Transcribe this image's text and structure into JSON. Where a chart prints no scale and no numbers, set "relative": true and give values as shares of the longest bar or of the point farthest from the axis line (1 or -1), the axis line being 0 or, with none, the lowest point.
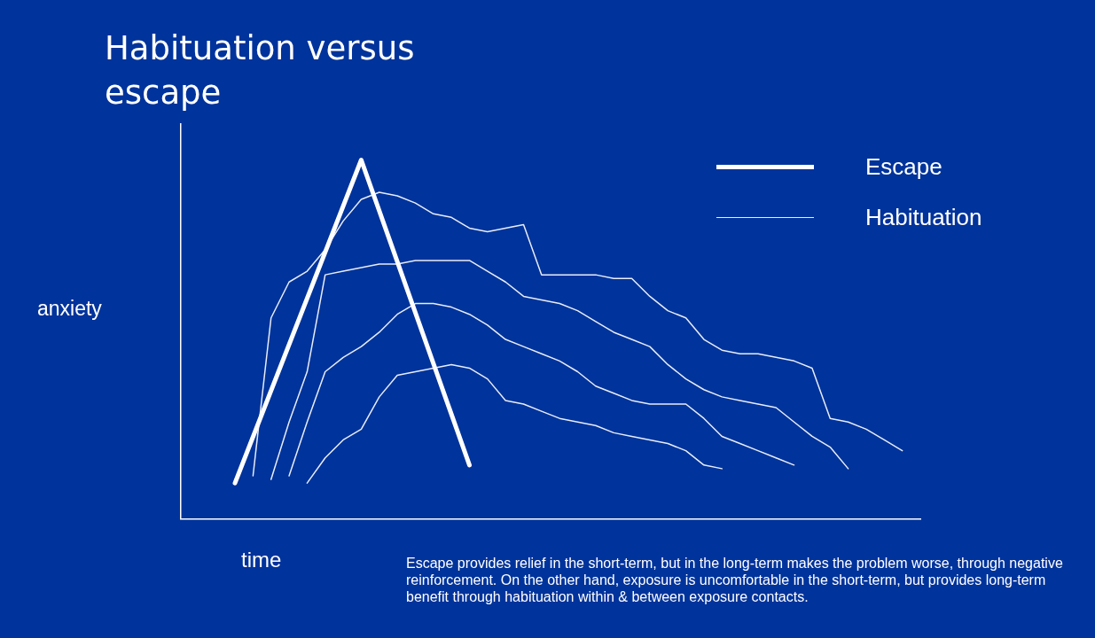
{
  "chart_data": {
    "type": "line",
    "title": "Habituation versus escape",
    "xlabel": "time",
    "ylabel": "anxiety",
    "relative": true,
    "legend": "top right",
    "grid": false,
    "marker": "none",
    "line_style": "solid",
    "categories": [
      null,
      null,
      null,
      null,
      null,
      null,
      null,
      null,
      null,
      null,
      null,
      null,
      null,
      null,
      null,
      null,
      null,
      null,
      null,
      null,
      null,
      null,
      null,
      null,
      null,
      null,
      null,
      null,
      null,
      null,
      null,
      null,
      null,
      null,
      null,
      null,
      null,
      null,
      null,
      null,
      null,
      null
    ],
    "series": [
      {
        "name": "Escape",
        "color": "#ffffff",
        "values": [
          null,
          null,
          null,
          0.1,
          null,
          null,
          null,
          null,
          null,
          null,
          1.0,
          null,
          null,
          null,
          null,
          null,
          0.15,
          null,
          null,
          null,
          null,
          null,
          null,
          null,
          null,
          null,
          null,
          null,
          null,
          null,
          null,
          null,
          null,
          null,
          null,
          null,
          null,
          null,
          null,
          null,
          null,
          null
        ]
      },
      {
        "name": "Habituation",
        "color": "#e8eef8",
        "values": [
          null,
          null,
          null,
          null,
          0.12,
          0.56,
          0.66,
          0.69,
          0.75,
          0.83,
          0.89,
          0.91,
          0.9,
          0.88,
          0.85,
          0.84,
          0.81,
          0.8,
          0.81,
          0.82,
          0.68,
          0.68,
          0.68,
          0.68,
          0.67,
          0.67,
          0.62,
          0.58,
          0.56,
          0.5,
          0.47,
          0.46,
          0.46,
          0.45,
          0.44,
          0.42,
          0.28,
          0.27,
          0.25,
          0.22,
          0.19,
          null
        ]
      },
      {
        "color": "#e8eef8",
        "values": [
          null,
          null,
          null,
          null,
          null,
          0.11,
          0.27,
          0.41,
          0.68,
          0.69,
          0.7,
          0.71,
          0.71,
          0.72,
          0.72,
          0.72,
          0.72,
          0.69,
          0.66,
          0.62,
          0.61,
          0.6,
          0.58,
          0.55,
          0.52,
          0.5,
          0.48,
          0.43,
          0.39,
          0.36,
          0.34,
          0.33,
          0.32,
          0.31,
          0.27,
          0.23,
          0.2,
          0.14,
          null,
          null,
          null,
          null
        ]
      },
      {
        "color": "#e8eef8",
        "values": [
          null,
          null,
          null,
          null,
          null,
          null,
          0.12,
          0.27,
          0.41,
          0.45,
          0.48,
          0.52,
          0.57,
          0.6,
          0.6,
          0.59,
          0.57,
          0.54,
          0.5,
          0.48,
          0.46,
          0.44,
          0.41,
          0.37,
          0.35,
          0.33,
          0.32,
          0.32,
          0.32,
          0.28,
          0.23,
          0.21,
          0.19,
          0.17,
          0.15,
          null,
          null,
          null,
          null,
          null,
          null,
          null
        ]
      },
      {
        "color": "#e8eef8",
        "values": [
          null,
          null,
          null,
          null,
          null,
          null,
          null,
          0.1,
          0.17,
          0.22,
          0.25,
          0.34,
          0.4,
          0.41,
          0.42,
          0.43,
          0.42,
          0.39,
          0.33,
          0.32,
          0.3,
          0.28,
          0.27,
          0.26,
          0.24,
          0.23,
          0.22,
          0.21,
          0.19,
          0.15,
          0.14,
          null,
          null,
          null,
          null,
          null,
          null,
          null,
          null,
          null,
          null,
          null
        ]
      }
    ],
    "annotations": [
      "Escape provides relief in the short-term, but in the long-term makes the problem worse, through negative reinforcement. On the other hand, exposure is uncomfortable in the short-term, but provides long-term benefit through habituation within & between exposure contacts."
    ]
  }
}
